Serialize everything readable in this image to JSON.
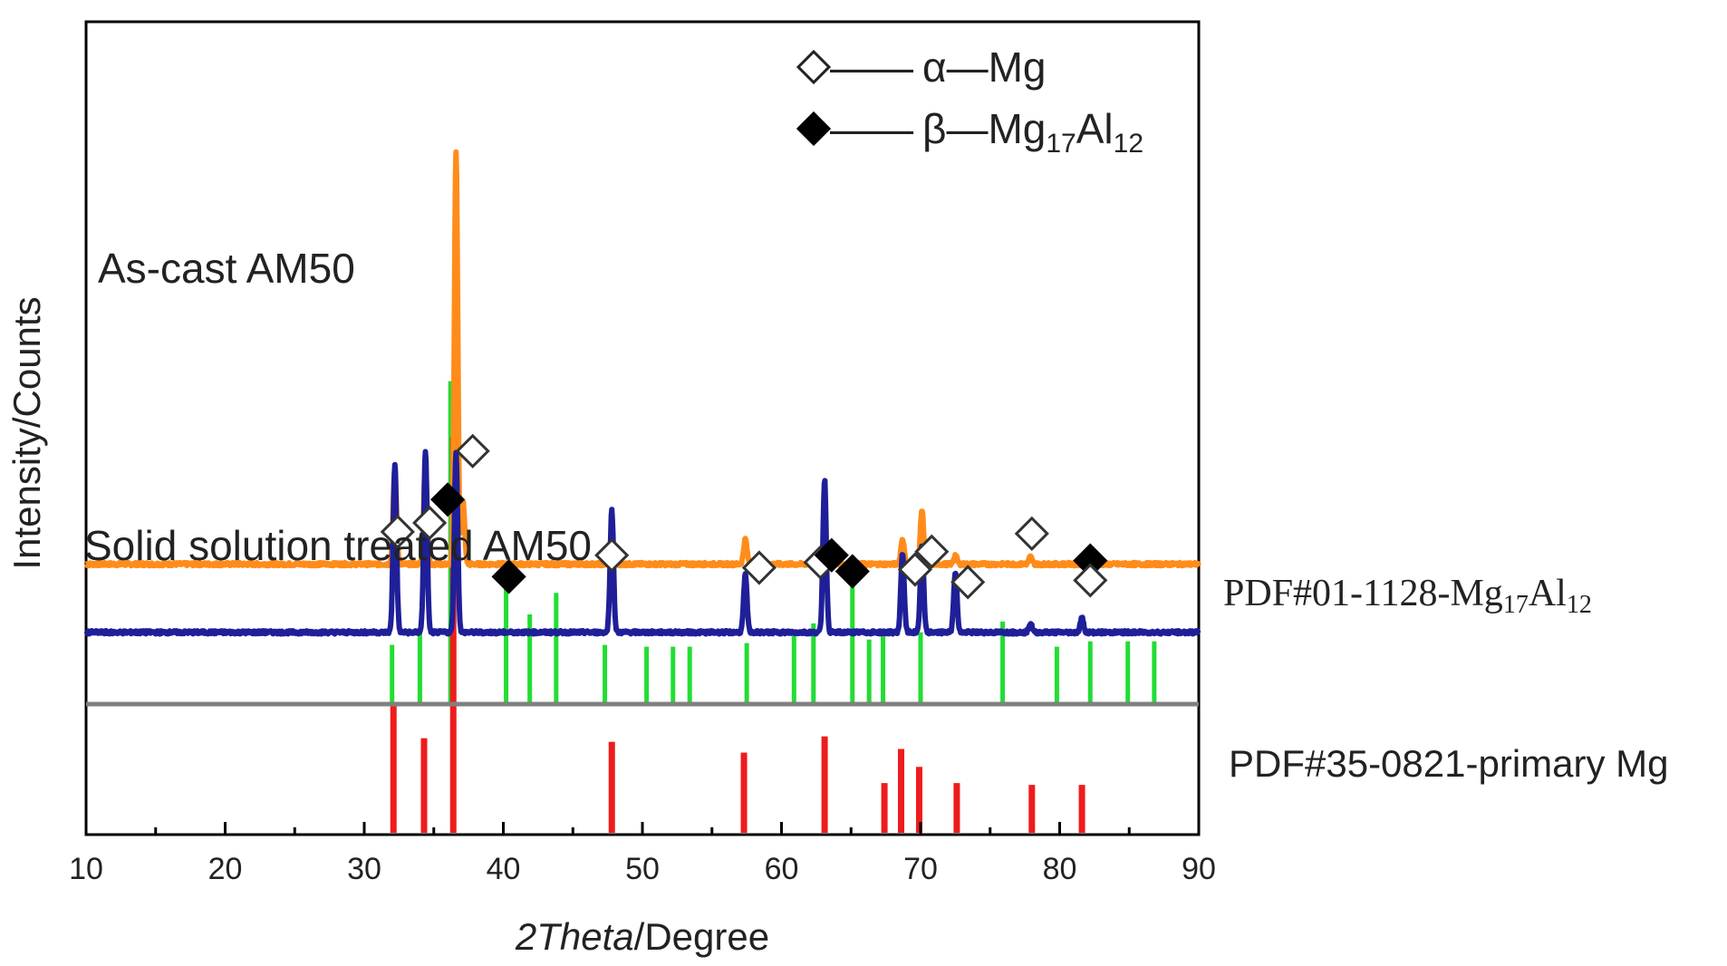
{
  "chart_data": {
    "type": "line",
    "title": "",
    "xlabel_italic": "2Theta",
    "xlabel_rest": "/Degree",
    "ylabel": "Intensity/Counts",
    "xlim": [
      10,
      90
    ],
    "x_ticks": [
      "10",
      "20",
      "30",
      "40",
      "50",
      "60",
      "70",
      "80",
      "90"
    ],
    "series": [
      {
        "name": "As-cast AM50",
        "label": "As-cast AM50",
        "color": "#ff8c1a",
        "baseline": 0.78,
        "peaks": [
          {
            "x": 32.2,
            "h": 0.52
          },
          {
            "x": 34.4,
            "h": 0.55
          },
          {
            "x": 36.6,
            "h": 2.3
          },
          {
            "x": 37.1,
            "h": 0.35
          },
          {
            "x": 47.8,
            "h": 0.17
          },
          {
            "x": 57.4,
            "h": 0.14
          },
          {
            "x": 63.1,
            "h": 0.13
          },
          {
            "x": 68.7,
            "h": 0.14
          },
          {
            "x": 70.1,
            "h": 0.3
          },
          {
            "x": 72.5,
            "h": 0.05
          },
          {
            "x": 77.9,
            "h": 0.04
          }
        ]
      },
      {
        "name": "Solid solution treated AM50",
        "label": "Solid solution treated AM50",
        "color": "#1f1f99",
        "baseline": 0.4,
        "peaks": [
          {
            "x": 32.2,
            "h": 0.94
          },
          {
            "x": 34.4,
            "h": 1.0
          },
          {
            "x": 36.6,
            "h": 1.0
          },
          {
            "x": 47.8,
            "h": 0.68
          },
          {
            "x": 57.4,
            "h": 0.32
          },
          {
            "x": 63.1,
            "h": 0.85
          },
          {
            "x": 68.7,
            "h": 0.44
          },
          {
            "x": 70.1,
            "h": 0.48
          },
          {
            "x": 72.5,
            "h": 0.34
          },
          {
            "x": 77.9,
            "h": 0.05
          },
          {
            "x": 81.6,
            "h": 0.08
          }
        ]
      }
    ],
    "reference_patterns": [
      {
        "name": "PDF#01-1128-Mg17Al12",
        "label_prefix": "PDF#01-1128-Mg",
        "label_sub1": "17",
        "label_mid": "Al",
        "label_sub2": "12",
        "color": "#22dd33",
        "baseline": 0.0,
        "lines": [
          {
            "x": 32.0,
            "h": 0.33
          },
          {
            "x": 34.0,
            "h": 0.4
          },
          {
            "x": 36.2,
            "h": 1.8
          },
          {
            "x": 40.2,
            "h": 0.8
          },
          {
            "x": 41.9,
            "h": 0.5
          },
          {
            "x": 43.8,
            "h": 0.62
          },
          {
            "x": 47.3,
            "h": 0.33
          },
          {
            "x": 50.3,
            "h": 0.32
          },
          {
            "x": 52.2,
            "h": 0.32
          },
          {
            "x": 53.4,
            "h": 0.32
          },
          {
            "x": 57.5,
            "h": 0.34
          },
          {
            "x": 60.9,
            "h": 0.39
          },
          {
            "x": 62.3,
            "h": 0.45
          },
          {
            "x": 65.1,
            "h": 0.8
          },
          {
            "x": 66.3,
            "h": 0.36
          },
          {
            "x": 67.3,
            "h": 0.39
          },
          {
            "x": 70.0,
            "h": 0.4
          },
          {
            "x": 75.9,
            "h": 0.46
          },
          {
            "x": 79.8,
            "h": 0.32
          },
          {
            "x": 82.2,
            "h": 0.35
          },
          {
            "x": 84.9,
            "h": 0.35
          },
          {
            "x": 86.8,
            "h": 0.35
          }
        ]
      },
      {
        "name": "PDF#35-0821-primary Mg",
        "label": "PDF#35-0821-primary Mg",
        "color": "#ee1c1c",
        "baseline": -0.86,
        "lines": [
          {
            "x": 32.1,
            "h": 0.86
          },
          {
            "x": 34.3,
            "h": 0.67
          },
          {
            "x": 36.4,
            "h": 2.35
          },
          {
            "x": 47.8,
            "h": 0.65
          },
          {
            "x": 57.3,
            "h": 0.59
          },
          {
            "x": 63.1,
            "h": 0.68
          },
          {
            "x": 67.4,
            "h": 0.42
          },
          {
            "x": 68.6,
            "h": 0.61
          },
          {
            "x": 69.9,
            "h": 0.51
          },
          {
            "x": 72.6,
            "h": 0.42
          },
          {
            "x": 78.0,
            "h": 0.41
          },
          {
            "x": 81.6,
            "h": 0.41
          }
        ]
      }
    ],
    "separator_line_y": 0.0,
    "separator_color": "#808080",
    "markers": [
      {
        "type": "alpha-Mg",
        "x": 32.4,
        "y": 0.96
      },
      {
        "type": "alpha-Mg",
        "x": 34.7,
        "y": 1.01
      },
      {
        "type": "beta-Mg17Al12",
        "x": 36.0,
        "y": 1.14
      },
      {
        "type": "alpha-Mg",
        "x": 37.8,
        "y": 1.41
      },
      {
        "type": "alpha-Mg",
        "x": 78.0,
        "y": 0.95
      },
      {
        "type": "beta-Mg17Al12",
        "x": 40.4,
        "y": 0.71
      },
      {
        "type": "alpha-Mg",
        "x": 47.8,
        "y": 0.83
      },
      {
        "type": "alpha-Mg",
        "x": 58.4,
        "y": 0.76
      },
      {
        "type": "alpha-Mg",
        "x": 62.8,
        "y": 0.79
      },
      {
        "type": "beta-Mg17Al12",
        "x": 63.6,
        "y": 0.83
      },
      {
        "type": "beta-Mg17Al12",
        "x": 65.1,
        "y": 0.74
      },
      {
        "type": "alpha-Mg",
        "x": 69.6,
        "y": 0.75
      },
      {
        "type": "alpha-Mg",
        "x": 70.8,
        "y": 0.85
      },
      {
        "type": "alpha-Mg",
        "x": 73.4,
        "y": 0.68
      },
      {
        "type": "beta-Mg17Al12",
        "x": 82.2,
        "y": 0.8
      },
      {
        "type": "alpha-Mg",
        "x": 82.2,
        "y": 0.69
      }
    ],
    "legend": {
      "placement": "top-right",
      "entries": [
        {
          "type": "alpha-Mg",
          "dash": "——",
          "greek": "α",
          "rest": "—Mg"
        },
        {
          "type": "beta-Mg17Al12",
          "dash": "——",
          "greek": "β",
          "rest": "—Mg",
          "sub1": "17",
          "mid": "Al",
          "sub2": "12"
        }
      ]
    }
  }
}
